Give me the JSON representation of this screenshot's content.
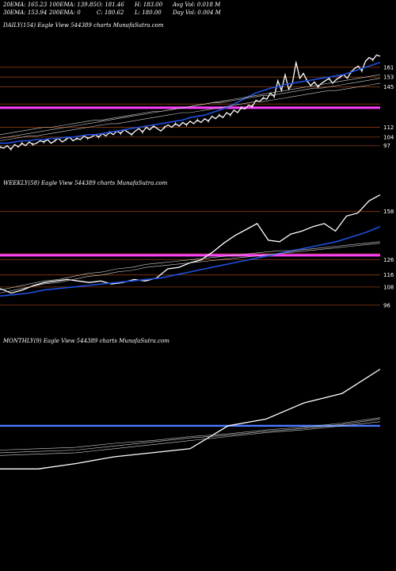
{
  "header": {
    "row1": [
      "20EMA: 165.23",
      "100EMA: 139.85",
      "O: 181.46",
      "H: 183.00",
      "Avg Vol: 0.018  M"
    ],
    "row2": [
      "30EMA: 153.94",
      "200EMA: 0",
      "C: 180.62",
      "L: 180.00",
      "Day Vol: 0.004  M"
    ]
  },
  "colors": {
    "background": "#000000",
    "price": "#ffffff",
    "ema_fast": "#1e50e0",
    "ema_slow": "#d0d0d0",
    "ref_line": "#8a3a10",
    "magenta": "#ff40ff",
    "blue_band": "#4a7aff"
  },
  "chart_data": [
    {
      "type": "line",
      "title": "DAILY(154) Eagle   View  544389 charts MunafaSutra.com",
      "ylim": [
        80,
        190
      ],
      "yticks": [
        "161",
        "153",
        "145",
        "112",
        "104",
        "97"
      ],
      "ytick_values": [
        161,
        153,
        145,
        112,
        104,
        97
      ],
      "ref_lines": [
        161,
        153,
        145,
        131,
        112,
        104,
        97
      ],
      "magenta_level": 128,
      "series": [
        {
          "role": "price",
          "values": [
            96,
            95,
            97,
            94,
            98,
            96,
            99,
            97,
            100,
            98,
            99,
            101,
            100,
            102,
            99,
            101,
            103,
            100,
            102,
            104,
            101,
            103,
            102,
            105,
            103,
            104,
            106,
            104,
            107,
            105,
            108,
            106,
            109,
            107,
            110,
            108,
            106,
            109,
            111,
            108,
            112,
            110,
            113,
            111,
            109,
            112,
            114,
            112,
            115,
            113,
            116,
            114,
            117,
            115,
            118,
            116,
            119,
            117,
            121,
            119,
            122,
            120,
            124,
            122,
            126,
            124,
            128,
            127,
            130,
            129,
            134,
            133,
            136,
            135,
            140,
            137,
            150,
            142,
            155,
            143,
            148,
            165,
            152,
            156,
            150,
            146,
            149,
            145,
            148,
            150,
            152,
            148,
            151,
            153,
            155,
            152,
            157,
            160,
            162,
            158,
            166,
            169,
            167,
            171,
            170
          ]
        },
        {
          "role": "ema_fast",
          "values": [
            99,
            99,
            100,
            101,
            101,
            102,
            102,
            103,
            103,
            104,
            104,
            105,
            106,
            106,
            107,
            108,
            109,
            110,
            111,
            112,
            113,
            114,
            115,
            116,
            117,
            118,
            120,
            121,
            122,
            124,
            126,
            128,
            131,
            134,
            137,
            140,
            142,
            144,
            145,
            147,
            148,
            149,
            150,
            151,
            152,
            153,
            154,
            155,
            157,
            159,
            161,
            163,
            165
          ]
        },
        {
          "role": "ema_slow",
          "values": [
            103,
            104,
            105,
            106,
            107,
            108,
            109,
            110,
            111,
            112,
            113,
            114,
            115,
            116,
            117,
            118,
            119,
            120,
            121,
            122,
            123,
            124,
            125,
            126,
            127,
            128,
            129,
            130,
            131,
            132,
            133,
            134,
            135,
            136,
            137,
            138,
            139,
            140,
            141,
            142,
            143,
            144,
            145,
            146,
            147,
            148,
            149,
            150,
            151,
            152,
            153,
            154,
            155
          ]
        },
        {
          "role": "ema_slow",
          "values": [
            106,
            107,
            108,
            109,
            110,
            111,
            112,
            112,
            113,
            114,
            115,
            116,
            117,
            118,
            118,
            119,
            120,
            121,
            122,
            123,
            124,
            125,
            125,
            126,
            127,
            128,
            129,
            130,
            131,
            132,
            132,
            133,
            134,
            135,
            136,
            137,
            138,
            138,
            139,
            140,
            141,
            142,
            143,
            144,
            144,
            145,
            146,
            147,
            148,
            149,
            150,
            151,
            152
          ]
        },
        {
          "role": "ema_slow",
          "values": [
            101,
            102,
            103,
            104,
            105,
            105,
            106,
            107,
            108,
            109,
            110,
            111,
            112,
            113,
            114,
            115,
            115,
            116,
            117,
            118,
            119,
            120,
            121,
            122,
            123,
            124,
            124,
            125,
            126,
            127,
            128,
            129,
            130,
            131,
            132,
            133,
            133,
            134,
            135,
            136,
            137,
            138,
            139,
            140,
            141,
            142,
            142,
            143,
            144,
            145,
            146,
            147,
            148
          ]
        }
      ]
    },
    {
      "type": "line",
      "title": "WEEKLY(58) Eagle   View  544389 charts MunafaSutra.com",
      "ylim": [
        88,
        172
      ],
      "yticks": [
        "158",
        "126",
        "116",
        "108",
        "96"
      ],
      "ytick_values": [
        158,
        126,
        116,
        108,
        96
      ],
      "ref_lines": [
        158,
        130,
        126,
        116,
        108,
        96
      ],
      "magenta_level": 129,
      "series": [
        {
          "role": "price",
          "values": [
            107,
            104,
            106,
            109,
            111,
            112,
            113,
            112,
            111,
            112,
            110,
            111,
            113,
            112,
            114,
            120,
            121,
            124,
            126,
            131,
            137,
            142,
            146,
            150,
            139,
            138,
            143,
            145,
            148,
            150,
            145,
            155,
            157,
            165,
            169
          ]
        },
        {
          "role": "ema_fast",
          "values": [
            102,
            103,
            104,
            106,
            107,
            108,
            109,
            110,
            111,
            112,
            113,
            114,
            116,
            118,
            120,
            122,
            124,
            126,
            128,
            130,
            132,
            134,
            136,
            138,
            141,
            144,
            148
          ]
        },
        {
          "role": "ema_slow",
          "values": [
            104,
            106,
            108,
            110,
            111,
            113,
            115,
            116,
            118,
            119,
            121,
            122,
            123,
            124,
            125,
            126,
            127,
            128,
            129,
            130,
            131,
            132,
            133,
            134,
            135,
            136,
            137
          ]
        },
        {
          "role": "ema_slow",
          "values": [
            106,
            108,
            110,
            112,
            113,
            115,
            117,
            118,
            120,
            121,
            123,
            124,
            125,
            126,
            127,
            128,
            129,
            130,
            131,
            132,
            132,
            133,
            134,
            135,
            136,
            137,
            138
          ]
        }
      ]
    },
    {
      "type": "line",
      "title": "MONTHLY(9) Eagle   View  544389 charts MunafaSutra.com",
      "ylim": [
        85,
        185
      ],
      "yticks": [],
      "ytick_values": [],
      "ref_lines": [],
      "blue_level": 128,
      "series": [
        {
          "role": "price",
          "values": [
            96,
            96,
            100,
            105,
            108,
            111,
            128,
            133,
            145,
            152,
            170
          ]
        },
        {
          "role": "ema_slow",
          "values": [
            108,
            109,
            110,
            113,
            116,
            119,
            121,
            124,
            126,
            129,
            133
          ]
        },
        {
          "role": "ema_slow",
          "values": [
            110,
            111,
            112,
            115,
            117,
            120,
            122,
            125,
            127,
            130,
            134
          ]
        },
        {
          "role": "ema_slow",
          "values": [
            106,
            107,
            108,
            111,
            114,
            117,
            120,
            123,
            125,
            128,
            131
          ]
        }
      ]
    }
  ]
}
